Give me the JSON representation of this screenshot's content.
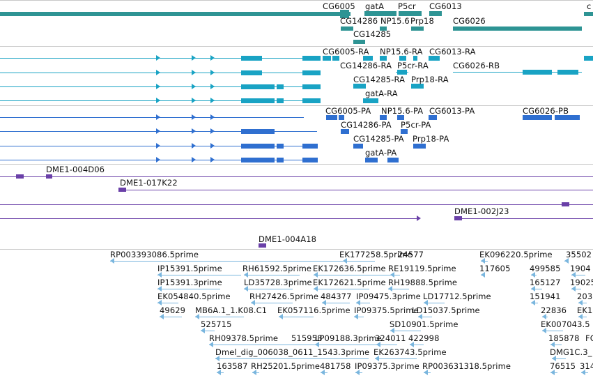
{
  "colors": {
    "gene": "#2e9494",
    "transcript": "#19a3c4",
    "protein": "#2f6fd0",
    "clone": "#6a40a8",
    "est": "#7ab6de"
  },
  "tracks": {
    "genes": {
      "labels": [
        "CG6005",
        "gatA",
        "P5cr",
        "CG6013",
        "c",
        "CG14286",
        "NP15.6",
        "Prp18",
        "CG6026",
        "CG14285"
      ]
    },
    "transcripts": {
      "labels": [
        "CG6005-RA",
        "NP15.6-RA",
        "CG6013-RA",
        "CG14286-RA",
        "P5cr-RA",
        "CG6026-RB",
        "CG14285-RA",
        "Prp18-RA",
        "gatA-RA"
      ]
    },
    "proteins": {
      "labels": [
        "CG6005-PA",
        "NP15.6-PA",
        "CG6013-PA",
        "CG6026-PB",
        "CG14286-PA",
        "P5cr-PA",
        "CG14285-PA",
        "Prp18-PA",
        "gatA-PA"
      ]
    },
    "clones": {
      "labels": [
        "DME1-004D06",
        "DME1-017K22",
        "DME1-002J23",
        "DME1-004A18"
      ]
    },
    "ests": {
      "labels": [
        "RP003393086.5prime",
        "EK177258.5prime",
        "24577",
        "EK096220.5prime",
        "35502",
        "IP15391.5prime",
        "RH61592.5prime",
        "EK172636.5prime",
        "RE19119.5prime",
        "117605",
        "499585",
        "1904",
        "IP15391.3prime",
        "LD35728.3prime",
        "EK172621.5prime",
        "RH19888.5prime",
        "165127",
        "19025",
        "EK054840.5prime",
        "RH27426.5prime",
        "484377",
        "IP09475.3prime",
        "LD17712.5prime",
        "151941",
        "203",
        "49629",
        "MB6A.1_1.K08.C1",
        "EK057116.5prime",
        "IP09375.5prime",
        "LD15037.5prime",
        "22836",
        "EK1",
        "525715",
        "SD10901.5prime",
        "EK007043.5",
        "RH09378.5prime",
        "515958",
        "LP09188.3prime",
        "324011",
        "422998",
        "185878",
        "FC",
        "Dmel_dig_006038_0611_1543.3prime",
        "EK263743.5prime",
        "DMG1C.3_",
        "163587",
        "RH25201.5prime",
        "481758",
        "IP09375.3prime",
        "RP003631318.5prime",
        "76515",
        "314"
      ]
    }
  }
}
